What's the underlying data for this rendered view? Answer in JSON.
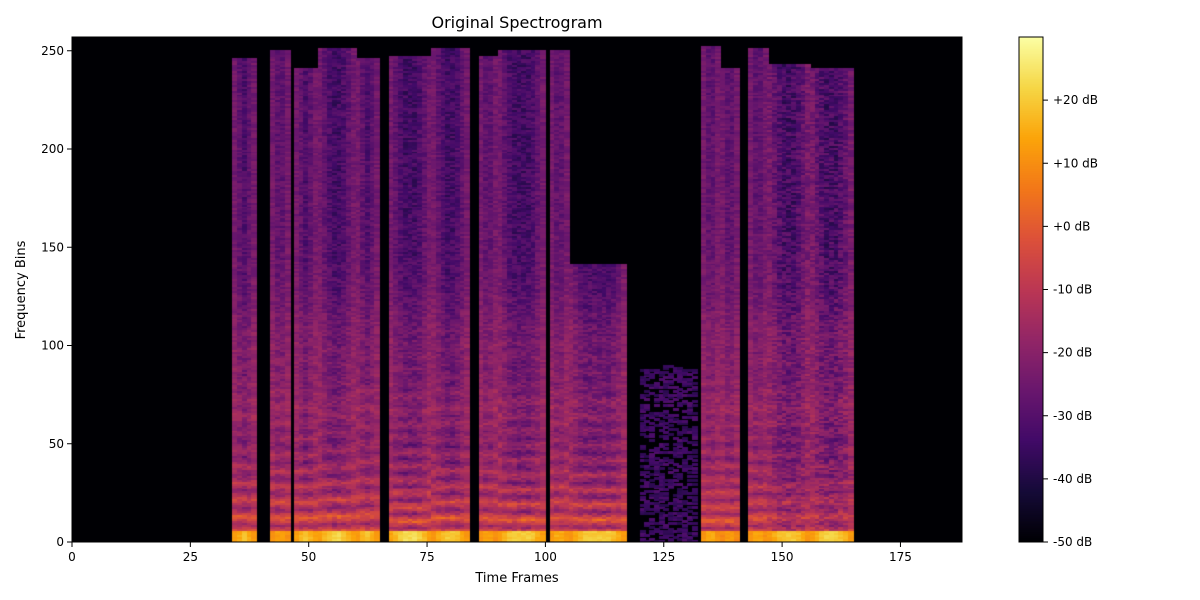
{
  "chart_data": {
    "type": "heatmap",
    "title": "Original Spectrogram",
    "xlabel": "Time Frames",
    "ylabel": "Frequency Bins",
    "xlim": [
      0,
      188
    ],
    "ylim": [
      0,
      257
    ],
    "xticks": [
      0,
      25,
      50,
      75,
      100,
      125,
      150,
      175
    ],
    "yticks": [
      0,
      50,
      100,
      150,
      200,
      250
    ],
    "colormap": "inferno",
    "colorbar": {
      "range_db": [
        -50,
        30
      ],
      "ticks": [
        -50,
        -40,
        -30,
        -20,
        -10,
        0,
        10,
        20
      ],
      "tick_labels": [
        "-50 dB",
        "-40 dB",
        "-30 dB",
        "-20 dB",
        "-10 dB",
        "+0 dB",
        "+10 dB",
        "+20 dB"
      ]
    },
    "voiced_segments": [
      {
        "t0": 34,
        "t1": 39,
        "f0": 8.5,
        "fmax": 245,
        "peak": 24,
        "noise": 0.0
      },
      {
        "t0": 42,
        "t1": 46,
        "f0": 8.0,
        "fmax": 249,
        "peak": 22,
        "noise": 0.0
      },
      {
        "t0": 47,
        "t1": 52,
        "f0": 8.0,
        "fmax": 240,
        "peak": 26,
        "noise": 0.0
      },
      {
        "t0": 52,
        "t1": 60,
        "f0": 8.5,
        "fmax": 250,
        "peak": 26,
        "noise": 0.0
      },
      {
        "t0": 60,
        "t1": 65,
        "f0": 9.0,
        "fmax": 245,
        "peak": 25,
        "noise": 0.0
      },
      {
        "t0": 67,
        "t1": 76,
        "f0": 7.0,
        "fmax": 246,
        "peak": 27,
        "noise": 0.0
      },
      {
        "t0": 76,
        "t1": 84,
        "f0": 8.0,
        "fmax": 250,
        "peak": 24,
        "noise": 0.0
      },
      {
        "t0": 86,
        "t1": 90,
        "f0": 8.0,
        "fmax": 246,
        "peak": 22,
        "noise": 0.0
      },
      {
        "t0": 90,
        "t1": 100,
        "f0": 7.5,
        "fmax": 249,
        "peak": 25,
        "noise": 0.0
      },
      {
        "t0": 101,
        "t1": 105,
        "f0": 8.0,
        "fmax": 249,
        "peak": 24,
        "noise": 0.0
      },
      {
        "t0": 105,
        "t1": 117,
        "f0": 7.5,
        "fmax": 140,
        "peak": 24,
        "noise": 0.0
      },
      {
        "t0": 133,
        "t1": 137,
        "f0": 7.0,
        "fmax": 251,
        "peak": 23,
        "noise": 0.0
      },
      {
        "t0": 137,
        "t1": 141,
        "f0": 7.0,
        "fmax": 240,
        "peak": 20,
        "noise": 0.0
      },
      {
        "t0": 143,
        "t1": 147,
        "f0": 8.0,
        "fmax": 250,
        "peak": 22,
        "noise": 0.0
      },
      {
        "t0": 147,
        "t1": 156,
        "f0": 8.0,
        "fmax": 242,
        "peak": 24,
        "noise": 0.45
      },
      {
        "t0": 156,
        "t1": 165,
        "f0": 8.5,
        "fmax": 240,
        "peak": 25,
        "noise": 0.45
      }
    ],
    "weak_segments": [
      {
        "t0": 120,
        "t1": 132,
        "fmax": 90,
        "level_db": -35
      }
    ]
  }
}
